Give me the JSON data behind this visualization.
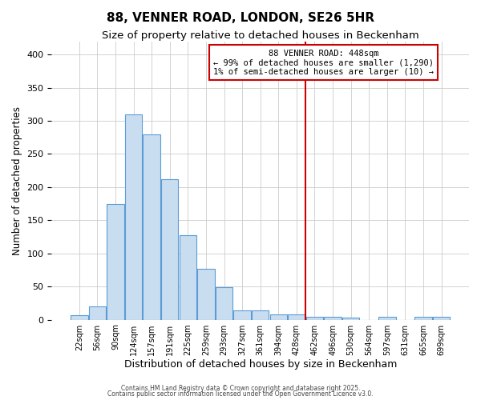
{
  "title": "88, VENNER ROAD, LONDON, SE26 5HR",
  "subtitle": "Size of property relative to detached houses in Beckenham",
  "xlabel": "Distribution of detached houses by size in Beckenham",
  "ylabel": "Number of detached properties",
  "bin_labels": [
    "22sqm",
    "56sqm",
    "90sqm",
    "124sqm",
    "157sqm",
    "191sqm",
    "225sqm",
    "259sqm",
    "293sqm",
    "327sqm",
    "361sqm",
    "394sqm",
    "428sqm",
    "462sqm",
    "496sqm",
    "530sqm",
    "564sqm",
    "597sqm",
    "631sqm",
    "665sqm",
    "699sqm"
  ],
  "bar_heights": [
    7,
    20,
    175,
    310,
    280,
    212,
    127,
    77,
    49,
    14,
    14,
    8,
    8,
    4,
    4,
    3,
    0,
    4,
    0,
    4,
    4
  ],
  "bar_color": "#c8ddf0",
  "bar_edge_color": "#5b9bd5",
  "vline_color": "#cc0000",
  "annotation_text": "88 VENNER ROAD: 448sqm\n← 99% of detached houses are smaller (1,290)\n1% of semi-detached houses are larger (10) →",
  "annotation_box_color": "#cc0000",
  "annotation_fontsize": 7.5,
  "footnote1": "Contains HM Land Registry data © Crown copyright and database right 2025.",
  "footnote2": "Contains public sector information licensed under the Open Government Licence v3.0.",
  "bg_color": "#ffffff",
  "plot_bg_color": "#ffffff",
  "grid_color": "#cccccc",
  "ylim": [
    0,
    420
  ],
  "title_fontsize": 11,
  "subtitle_fontsize": 9.5,
  "xlabel_fontsize": 9,
  "ylabel_fontsize": 8.5,
  "tick_fontsize": 8,
  "xtick_fontsize": 7
}
